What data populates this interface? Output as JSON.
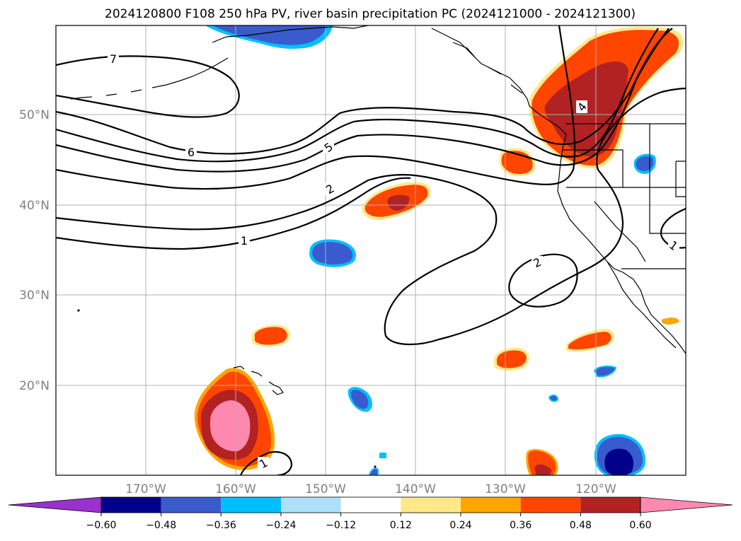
{
  "title": "2024120800 F108 250 hPa PV, river basin precipitation PC (2024121000 - 2024121300)",
  "lat_labels": [
    "50°N",
    "40°N",
    "30°N",
    "20°N"
  ],
  "lon_labels": [
    "170°W",
    "160°W",
    "150°W",
    "140°W",
    "130°W",
    "120°W"
  ],
  "contour_labels": [
    "7",
    "6",
    "5",
    "4",
    "2",
    "1",
    "2",
    "1",
    "1"
  ],
  "colorbar": {
    "ticks": [
      "−0.60",
      "−0.48",
      "−0.36",
      "−0.24",
      "−0.12",
      "0.12",
      "0.24",
      "0.36",
      "0.48",
      "0.60"
    ],
    "colors": [
      "#9932CC",
      "#00008B",
      "#3A5BCD",
      "#00BFFF",
      "#ADE1FA",
      "#FFFFFF",
      "#FFE88A",
      "#FFA500",
      "#FF4500",
      "#B22222",
      "#FF88B0"
    ]
  },
  "map": {
    "projection": "PlateCarree",
    "lon_range": [
      -180,
      -110
    ],
    "lat_range": [
      10,
      60
    ],
    "pv_contour_color": "#000000"
  }
}
